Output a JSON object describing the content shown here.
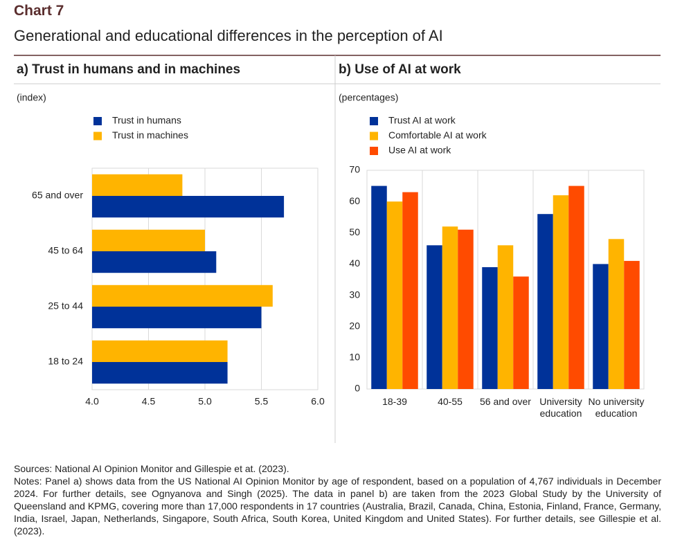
{
  "header": {
    "title": "Chart 7",
    "subtitle": "Generational and educational differences in the perception of AI"
  },
  "chart_data": [
    {
      "type": "bar",
      "orientation": "horizontal",
      "title": "a) Trust in humans and in machines",
      "units": "(index)",
      "categories": [
        "18 to 24",
        "25 to 44",
        "45 to 64",
        "65 and over"
      ],
      "series": [
        {
          "name": "Trust in humans",
          "color": "#003299",
          "values": [
            5.2,
            5.5,
            5.1,
            5.7
          ]
        },
        {
          "name": "Trust in machines",
          "color": "#ffb400",
          "values": [
            5.2,
            5.6,
            5.0,
            4.8
          ]
        }
      ],
      "xlim": [
        4.0,
        6.0
      ],
      "xticks": [
        {
          "value": 4.0,
          "label": "4.0"
        },
        4.5,
        {
          "value": 5.0,
          "label": "5.0"
        },
        5.5,
        {
          "value": 6.0,
          "label": "6.0"
        }
      ],
      "grid": true,
      "legend": "top-left"
    },
    {
      "type": "bar",
      "orientation": "vertical",
      "title": "b) Use of AI at work",
      "units": "(percentages)",
      "categories": [
        "18-39",
        "40-55",
        "56 and over",
        "University education",
        "No university education"
      ],
      "series": [
        {
          "name": "Trust AI at work",
          "color": "#003299",
          "values": [
            65,
            46,
            39,
            56,
            40
          ]
        },
        {
          "name": "Comfortable AI at work",
          "color": "#ffb400",
          "values": [
            60,
            52,
            46,
            62,
            48
          ]
        },
        {
          "name": "Use AI at work",
          "color": "#ff4b00",
          "values": [
            63,
            51,
            36,
            65,
            41
          ]
        }
      ],
      "ylim": [
        0,
        70
      ],
      "yticks": [
        0,
        10,
        20,
        30,
        40,
        50,
        60,
        70
      ],
      "grid": false,
      "legend": "top-left"
    }
  ],
  "footer": {
    "sources": "Sources: National AI Opinion Monitor and Gillespie et at. (2023).",
    "notes": "Notes: Panel a) shows data from the US National AI Opinion Monitor by age of respondent, based on a population of 4,767 individuals in December 2024. For further details, see Ognyanova and Singh (2025). The data in panel b) are taken from the 2023 Global Study by the University of Queensland and KPMG, covering more than 17,000 respondents in 17 countries (Australia, Brazil, Canada, China, Estonia, Finland, France, Germany, India, Israel, Japan, Netherlands, Singapore, South Africa, South Korea, United Kingdom and United States). For further details, see Gillespie et al. (2023)."
  }
}
